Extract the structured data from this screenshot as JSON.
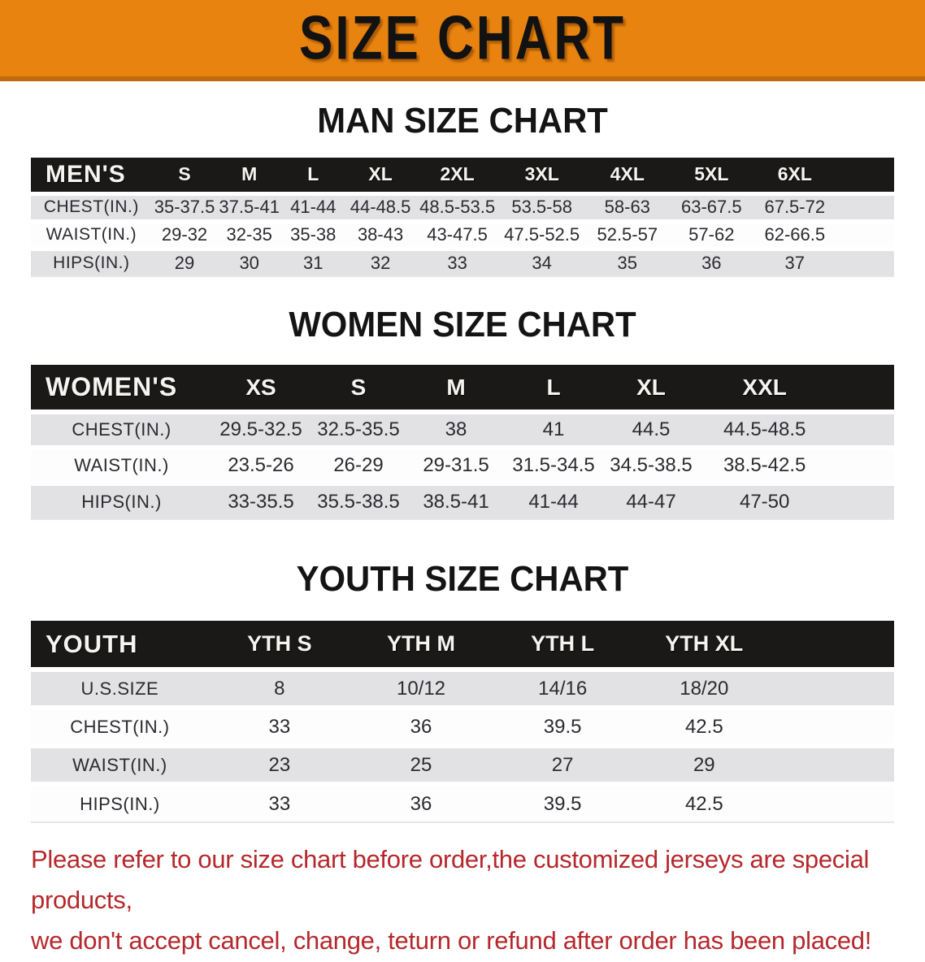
{
  "banner": {
    "title": "SIZE CHART"
  },
  "sections": {
    "men": {
      "heading": "MAN SIZE CHART",
      "table": {
        "header": [
          "MEN'S",
          "S",
          "M",
          "L",
          "XL",
          "2XL",
          "3XL",
          "4XL",
          "5XL",
          "6XL"
        ],
        "rows": [
          {
            "label": "CHEST(IN.)",
            "values": [
              "35-37.5",
              "37.5-41",
              "41-44",
              "44-48.5",
              "48.5-53.5",
              "53.5-58",
              "58-63",
              "63-67.5",
              "67.5-72"
            ]
          },
          {
            "label": "WAIST(IN.)",
            "values": [
              "29-32",
              "32-35",
              "35-38",
              "38-43",
              "43-47.5",
              "47.5-52.5",
              "52.5-57",
              "57-62",
              "62-66.5"
            ]
          },
          {
            "label": "HIPS(IN.)",
            "values": [
              "29",
              "30",
              "31",
              "32",
              "33",
              "34",
              "35",
              "36",
              "37"
            ]
          }
        ]
      }
    },
    "women": {
      "heading": "WOMEN SIZE CHART",
      "table": {
        "header": [
          "WOMEN'S",
          "XS",
          "S",
          "M",
          "L",
          "XL",
          "XXL"
        ],
        "rows": [
          {
            "label": "CHEST(IN.)",
            "values": [
              "29.5-32.5",
              "32.5-35.5",
              "38",
              "41",
              "44.5",
              "44.5-48.5"
            ]
          },
          {
            "label": "WAIST(IN.)",
            "values": [
              "23.5-26",
              "26-29",
              "29-31.5",
              "31.5-34.5",
              "34.5-38.5",
              "38.5-42.5"
            ]
          },
          {
            "label": "HIPS(IN.)",
            "values": [
              "33-35.5",
              "35.5-38.5",
              "38.5-41",
              "41-44",
              "44-47",
              "47-50"
            ]
          }
        ]
      }
    },
    "youth": {
      "heading": "YOUTH SIZE CHART",
      "table": {
        "header": [
          "YOUTH",
          "YTH S",
          "YTH M",
          "YTH L",
          "YTH XL"
        ],
        "rows": [
          {
            "label": "U.S.SIZE",
            "values": [
              "8",
              "10/12",
              "14/16",
              "18/20"
            ]
          },
          {
            "label": "CHEST(IN.)",
            "values": [
              "33",
              "36",
              "39.5",
              "42.5"
            ]
          },
          {
            "label": "WAIST(IN.)",
            "values": [
              "23",
              "25",
              "27",
              "29"
            ]
          },
          {
            "label": "HIPS(IN.)",
            "values": [
              "33",
              "36",
              "39.5",
              "42.5"
            ]
          }
        ]
      }
    }
  },
  "footnote": {
    "line1": "Please refer to our size chart before order,the customized jerseys are special products,",
    "line2": "we don't accept cancel, change, teturn or refund after order has been placed!"
  },
  "colors": {
    "banner_bg": "#e8830f",
    "banner_edge": "#c06a10",
    "band_bg": "#1b1918",
    "band_fg": "#f6f4f0",
    "row_gray": "#e2e2e4",
    "row_white": "#fdfdfd",
    "cell_fg": "#2b2b30",
    "note_red": "#b5282c"
  }
}
